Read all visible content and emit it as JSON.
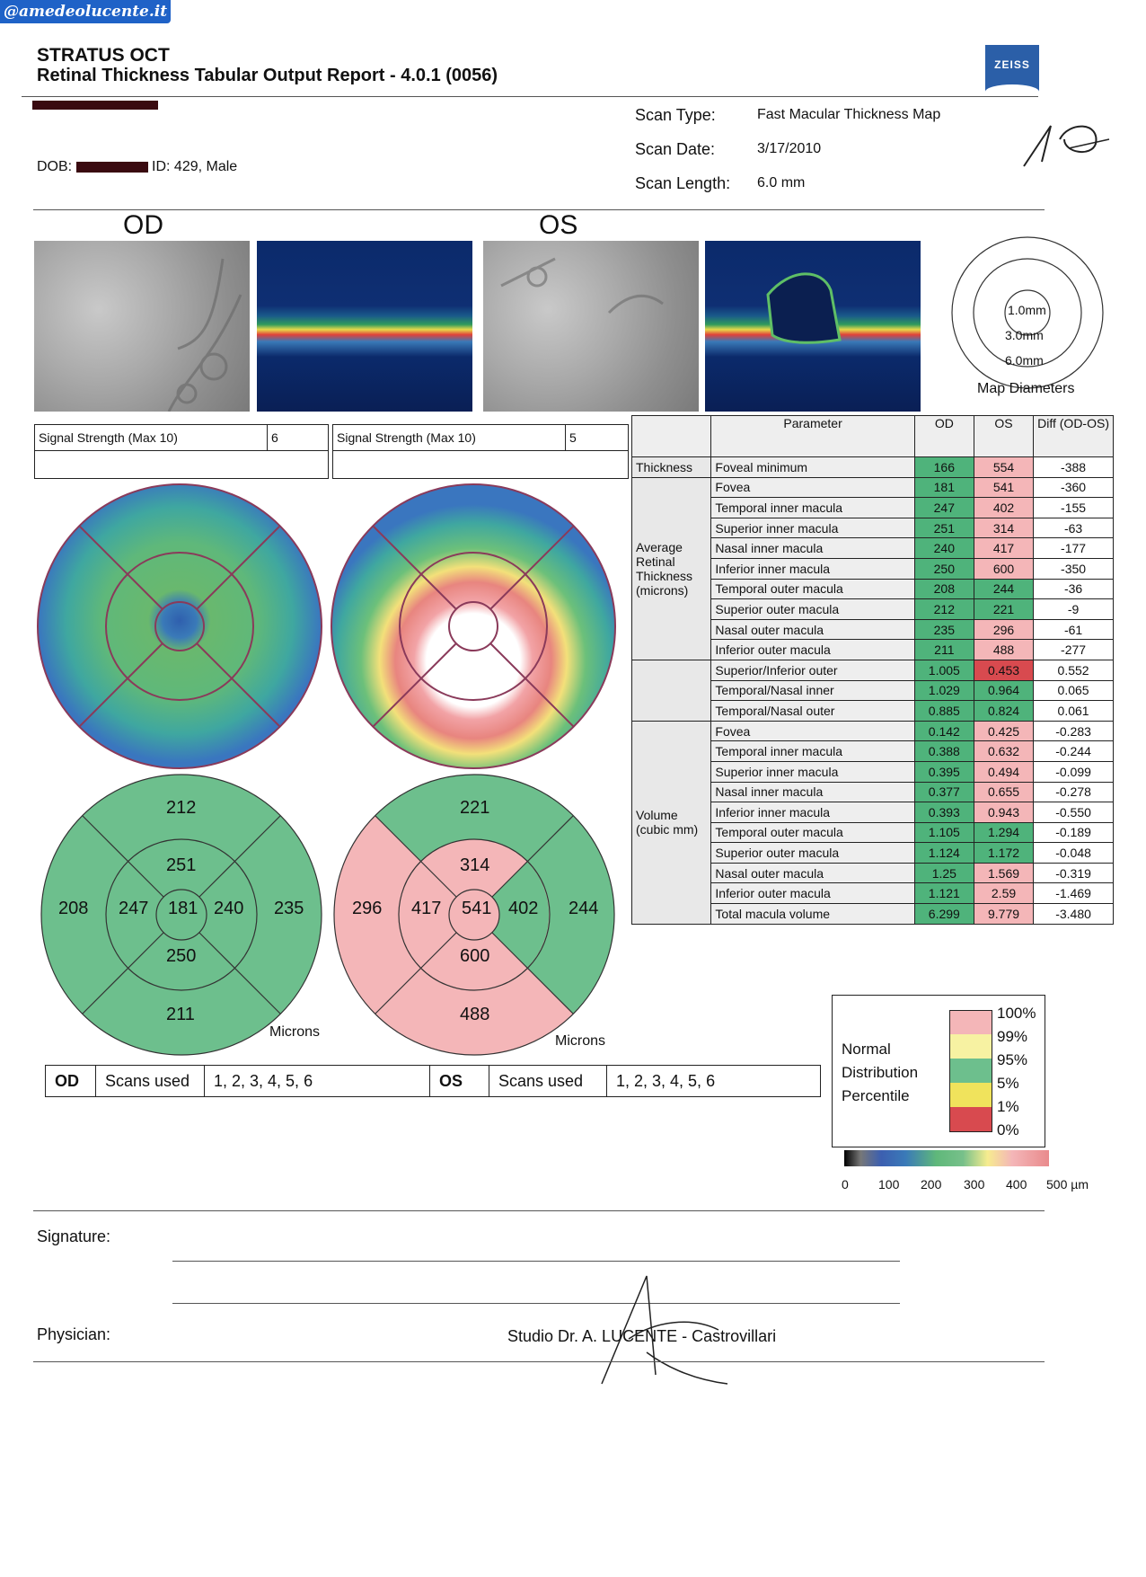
{
  "watermark": "@amedeolucente.it",
  "header": {
    "title": "STRATUS OCT",
    "subtitle": "Retinal Thickness Tabular Output Report - 4.0.1 (0056)",
    "logo_text": "ZEISS"
  },
  "patient": {
    "dob_label": "DOB:",
    "id_text": "ID: 429, Male"
  },
  "scan": {
    "type_label": "Scan Type:",
    "type_value": "Fast Macular Thickness Map",
    "date_label": "Scan Date:",
    "date_value": "3/17/2010",
    "length_label": "Scan Length:",
    "length_value": "6.0 mm"
  },
  "eyes": {
    "od": "OD",
    "os": "OS"
  },
  "map_diameters": {
    "d1": "1.0mm",
    "d3": "3.0mm",
    "d6": "6.0mm",
    "caption": "Map Diameters"
  },
  "signal": {
    "od_label": "Signal Strength (Max 10)",
    "od_value": "6",
    "os_label": "Signal Strength (Max 10)",
    "os_value": "5"
  },
  "table": {
    "headers": {
      "parameter": "Parameter",
      "od": "OD",
      "os": "OS",
      "diff": "Diff (OD-OS)"
    },
    "group_thickness": "Thickness",
    "group_avg": "Average Retinal Thickness (microns)",
    "group_volume": "Volume (cubic mm)",
    "rows": [
      {
        "name": "Foveal minimum",
        "od": "166",
        "os": "554",
        "diff": "-388"
      },
      {
        "name": "Fovea",
        "od": "181",
        "os": "541",
        "diff": "-360"
      },
      {
        "name": "Temporal inner macula",
        "od": "247",
        "os": "402",
        "diff": "-155"
      },
      {
        "name": "Superior inner macula",
        "od": "251",
        "os": "314",
        "diff": "-63"
      },
      {
        "name": "Nasal inner macula",
        "od": "240",
        "os": "417",
        "diff": "-177"
      },
      {
        "name": "Inferior inner macula",
        "od": "250",
        "os": "600",
        "diff": "-350"
      },
      {
        "name": "Temporal outer macula",
        "od": "208",
        "os": "244",
        "diff": "-36"
      },
      {
        "name": "Superior outer macula",
        "od": "212",
        "os": "221",
        "diff": "-9"
      },
      {
        "name": "Nasal outer macula",
        "od": "235",
        "os": "296",
        "diff": "-61"
      },
      {
        "name": "Inferior outer macula",
        "od": "211",
        "os": "488",
        "diff": "-277"
      },
      {
        "name": "Superior/Inferior outer",
        "od": "1.005",
        "os": "0.453",
        "diff": "0.552"
      },
      {
        "name": "Temporal/Nasal inner",
        "od": "1.029",
        "os": "0.964",
        "diff": "0.065"
      },
      {
        "name": "Temporal/Nasal outer",
        "od": "0.885",
        "os": "0.824",
        "diff": "0.061"
      },
      {
        "name": "Fovea",
        "od": "0.142",
        "os": "0.425",
        "diff": "-0.283"
      },
      {
        "name": "Temporal inner macula",
        "od": "0.388",
        "os": "0.632",
        "diff": "-0.244"
      },
      {
        "name": "Superior inner macula",
        "od": "0.395",
        "os": "0.494",
        "diff": "-0.099"
      },
      {
        "name": "Nasal inner macula",
        "od": "0.377",
        "os": "0.655",
        "diff": "-0.278"
      },
      {
        "name": "Inferior inner macula",
        "od": "0.393",
        "os": "0.943",
        "diff": "-0.550"
      },
      {
        "name": "Temporal outer macula",
        "od": "1.105",
        "os": "1.294",
        "diff": "-0.189"
      },
      {
        "name": "Superior outer macula",
        "od": "1.124",
        "os": "1.172",
        "diff": "-0.048"
      },
      {
        "name": "Nasal outer macula",
        "od": "1.25",
        "os": "1.569",
        "diff": "-0.319"
      },
      {
        "name": "Inferior outer macula",
        "od": "1.121",
        "os": "2.59",
        "diff": "-1.469"
      },
      {
        "name": "Total macula volume",
        "od": "6.299",
        "os": "9.779",
        "diff": "-3.480"
      }
    ]
  },
  "od_sectors": {
    "superior_outer": "212",
    "superior_inner": "251",
    "temporal_outer": "208",
    "temporal_inner": "247",
    "center": "181",
    "nasal_inner": "240",
    "nasal_outer": "235",
    "inferior_inner": "250",
    "inferior_outer": "211",
    "units": "Microns"
  },
  "os_sectors": {
    "superior_outer": "221",
    "superior_inner": "314",
    "nasal_outer": "296",
    "nasal_inner": "417",
    "center": "541",
    "temporal_inner": "402",
    "temporal_outer": "244",
    "inferior_inner": "600",
    "inferior_outer": "488",
    "units": "Microns"
  },
  "legend": {
    "title1": "Normal",
    "title2": "Distribution",
    "title3": "Percentile",
    "p100": "100%",
    "p99": "99%",
    "p95": "95%",
    "p5": "5%",
    "p1": "1%",
    "p0": "0%"
  },
  "scale": {
    "t0": "0",
    "t100": "100",
    "t200": "200",
    "t300": "300",
    "t400": "400",
    "t500": "500 µm"
  },
  "scans_used": {
    "od": "OD",
    "os": "OS",
    "label_od": "Scans used",
    "label_os": "Scans used",
    "od_value": "1, 2, 3, 4, 5, 6",
    "os_value": "1, 2, 3, 4, 5, 6"
  },
  "footer": {
    "signature": "Signature:",
    "physician": "Physician:",
    "studio": "Studio Dr. A. LUCENTE - Castrovillari"
  },
  "handwritten_mark": "10",
  "colors": {
    "green": "#4fb37b",
    "pink": "#f4b6b8",
    "red": "#d84a4f",
    "yellow": "#f5f09a",
    "blue": "#3a7ab8"
  }
}
